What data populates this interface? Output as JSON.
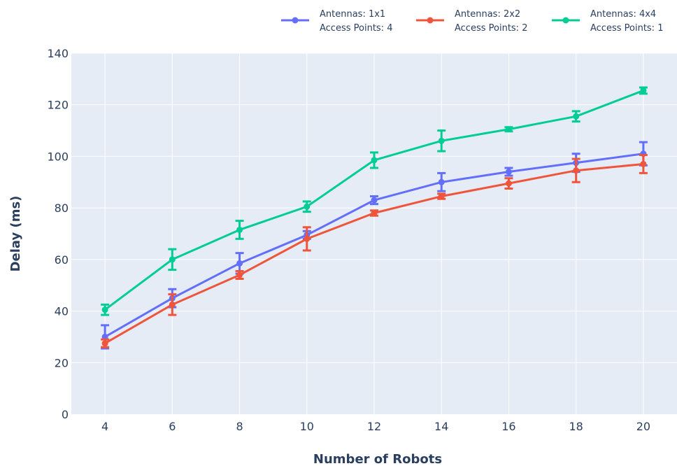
{
  "chart_data": {
    "type": "line",
    "xlabel": "Number of Robots",
    "ylabel": "Delay (ms)",
    "x": [
      4,
      6,
      8,
      10,
      12,
      14,
      16,
      18,
      20
    ],
    "xlim": [
      3,
      21
    ],
    "ylim": [
      0,
      140
    ],
    "yticks": [
      0,
      20,
      40,
      60,
      80,
      100,
      120,
      140
    ],
    "xticks": [
      4,
      6,
      8,
      10,
      12,
      14,
      16,
      18,
      20
    ],
    "grid": true,
    "legend_position": "top-right",
    "series": [
      {
        "name_line1": "Antennas: 1x1",
        "name_line2": "Access Points: 4",
        "color": "#636efa",
        "values": [
          30,
          45,
          58.5,
          69.5,
          83,
          90,
          94,
          97.5,
          101
        ],
        "error": [
          4.5,
          3.5,
          4,
          1.5,
          1.5,
          3.5,
          1.5,
          3.5,
          4.5
        ]
      },
      {
        "name_line1": "Antennas: 2x2",
        "name_line2": "Access Points: 2",
        "color": "#ef553b",
        "values": [
          27.5,
          42.5,
          54,
          68,
          78,
          84.5,
          89.5,
          94.5,
          97
        ],
        "error": [
          1.5,
          4,
          1.5,
          4.5,
          1,
          1,
          2,
          4.5,
          3.5
        ]
      },
      {
        "name_line1": "Antennas: 4x4",
        "name_line2": "Access Points: 1",
        "color": "#00cc96",
        "values": [
          40.5,
          60,
          71.5,
          80.5,
          98.5,
          106,
          110.5,
          115.5,
          125.5
        ],
        "error": [
          2,
          4,
          3.5,
          2,
          3,
          4,
          0.8,
          2,
          1.2
        ]
      }
    ]
  }
}
